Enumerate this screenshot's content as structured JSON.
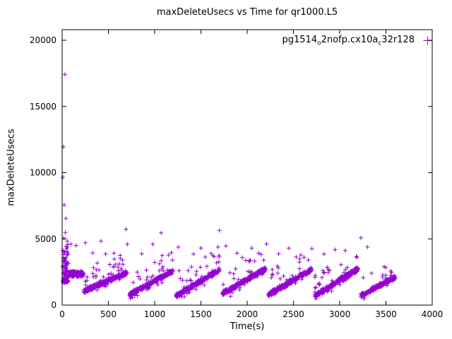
{
  "window": {
    "background": "#ffffff",
    "foreground": "#000000"
  },
  "chart_data": {
    "type": "scatter",
    "title": "maxDeleteUsecs vs Time for qr1000.L5",
    "xlabel": "Time(s)",
    "ylabel": "maxDeleteUsecs",
    "xlim": [
      0,
      4000
    ],
    "ylim": [
      0,
      20800
    ],
    "xticks": [
      0,
      500,
      1000,
      1500,
      2000,
      2500,
      3000,
      3500,
      4000
    ],
    "yticks": [
      0,
      5000,
      10000,
      15000,
      20000
    ],
    "grid": false,
    "legend_position": "top-right-inside",
    "series": [
      {
        "name": "pg1514_o2nofp.cx10a_c32r128",
        "label_parts": [
          {
            "text": "pg1514"
          },
          {
            "text": "o",
            "sub": true
          },
          {
            "text": "2nofp.cx10a"
          },
          {
            "text": "c",
            "sub": true
          },
          {
            "text": "32r128"
          }
        ],
        "marker": "plus",
        "color": "#9400D3",
        "seed": 1337,
        "clusters": [
          {
            "x0": 4,
            "x1": 70,
            "yMin": 1700,
            "yMax": 4800,
            "bias": 1.7,
            "n": 90
          },
          {
            "x0": 60,
            "x1": 235,
            "yMin": 2150,
            "yMax": 2550,
            "bias": 1.0,
            "n": 140
          }
        ],
        "ramps": [
          {
            "x0": 230,
            "x1": 700,
            "y0": 1050,
            "y1": 2450,
            "spread": 210,
            "n": 300,
            "upP": 0.08,
            "up": 1700,
            "dnP": 0.04,
            "dn": 450
          },
          {
            "x0": 730,
            "x1": 1200,
            "y0": 800,
            "y1": 2600,
            "spread": 210,
            "n": 300,
            "upP": 0.08,
            "up": 1700,
            "dnP": 0.04,
            "dn": 450
          },
          {
            "x0": 1230,
            "x1": 1700,
            "y0": 700,
            "y1": 2650,
            "spread": 210,
            "n": 300,
            "upP": 0.08,
            "up": 1700,
            "dnP": 0.04,
            "dn": 450
          },
          {
            "x0": 1730,
            "x1": 2200,
            "y0": 850,
            "y1": 2750,
            "spread": 210,
            "n": 300,
            "upP": 0.08,
            "up": 1700,
            "dnP": 0.04,
            "dn": 450
          },
          {
            "x0": 2230,
            "x1": 2700,
            "y0": 800,
            "y1": 2700,
            "spread": 210,
            "n": 300,
            "upP": 0.08,
            "up": 1700,
            "dnP": 0.04,
            "dn": 450
          },
          {
            "x0": 2730,
            "x1": 3200,
            "y0": 700,
            "y1": 2750,
            "spread": 210,
            "n": 300,
            "upP": 0.08,
            "up": 1700,
            "dnP": 0.04,
            "dn": 450
          },
          {
            "x0": 3230,
            "x1": 3600,
            "y0": 700,
            "y1": 2150,
            "spread": 200,
            "n": 240,
            "upP": 0.08,
            "up": 1500,
            "dnP": 0.04,
            "dn": 400
          }
        ],
        "outliers": [
          [
            8,
            9650
          ],
          [
            14,
            11950
          ],
          [
            30,
            17420
          ],
          [
            22,
            7560
          ],
          [
            40,
            6550
          ],
          [
            18,
            5060
          ],
          [
            34,
            5480
          ],
          [
            55,
            4830
          ],
          [
            95,
            4610
          ],
          [
            150,
            4500
          ],
          [
            250,
            4710
          ],
          [
            330,
            3940
          ],
          [
            420,
            4830
          ],
          [
            470,
            3860
          ],
          [
            560,
            3920
          ],
          [
            690,
            5730
          ],
          [
            705,
            4590
          ],
          [
            860,
            3870
          ],
          [
            980,
            4590
          ],
          [
            1070,
            5450
          ],
          [
            1150,
            3780
          ],
          [
            1255,
            4380
          ],
          [
            1420,
            3850
          ],
          [
            1500,
            4310
          ],
          [
            1610,
            3900
          ],
          [
            1700,
            5640
          ],
          [
            1770,
            4470
          ],
          [
            1890,
            3920
          ],
          [
            2050,
            4310
          ],
          [
            2150,
            3820
          ],
          [
            2210,
            4620
          ],
          [
            2340,
            3870
          ],
          [
            2450,
            4300
          ],
          [
            2580,
            3780
          ],
          [
            2700,
            4260
          ],
          [
            2830,
            3860
          ],
          [
            2950,
            4180
          ],
          [
            3060,
            4120
          ],
          [
            3230,
            5080
          ],
          [
            3300,
            4390
          ],
          [
            3480,
            2900
          ]
        ]
      }
    ]
  }
}
